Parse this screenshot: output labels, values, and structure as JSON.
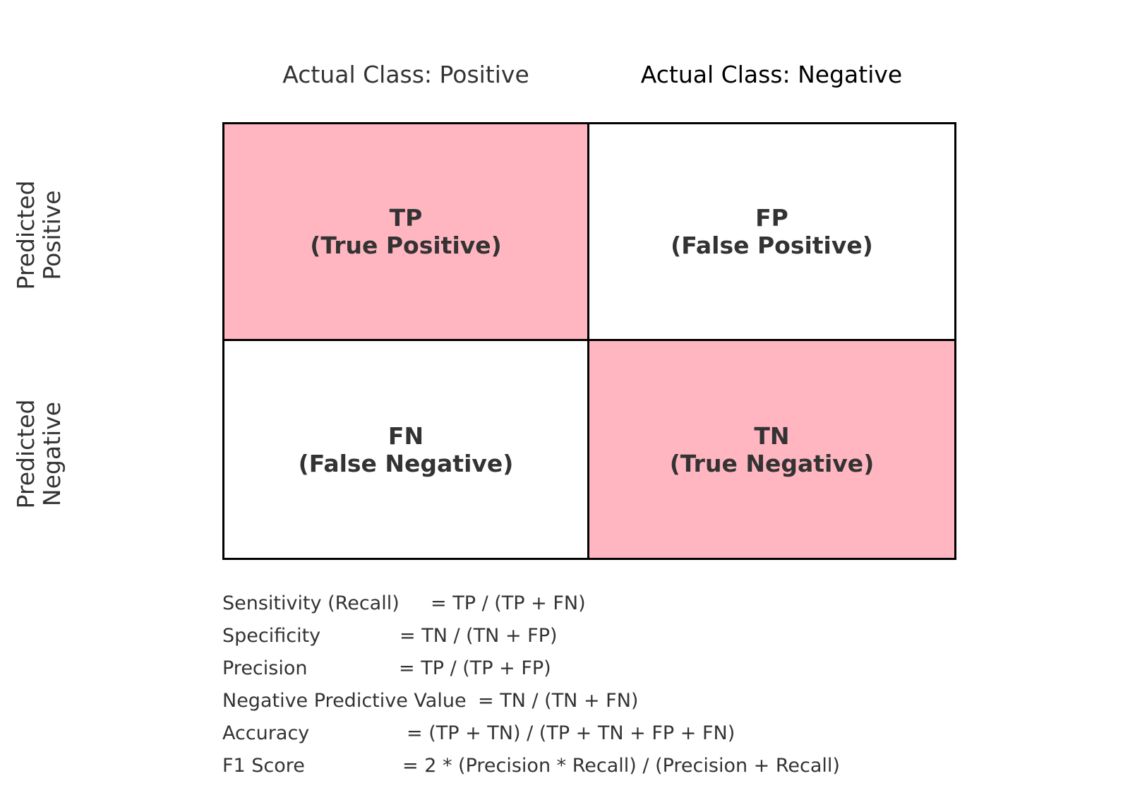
{
  "columns": {
    "positive": "Actual Class: Positive",
    "negative": "Actual Class: Negative"
  },
  "rows": {
    "positive": [
      "Predicted",
      "Positive"
    ],
    "negative": [
      "Predicted",
      "Negative"
    ]
  },
  "cells": {
    "tp": {
      "abbr": "TP",
      "full": "(True Positive)"
    },
    "fp": {
      "abbr": "FP",
      "full": "(False Positive)"
    },
    "fn": {
      "abbr": "FN",
      "full": "(False Negative)"
    },
    "tn": {
      "abbr": "TN",
      "full": "(True Negative)"
    }
  },
  "formulas": [
    {
      "label": "Sensitivity (Recall)",
      "expr": "= TP / (TP + FN)"
    },
    {
      "label": "Specificity",
      "expr": "= TN / (TN + FP)"
    },
    {
      "label": "Precision",
      "expr": "= TP / (TP + FP)"
    },
    {
      "label": "Negative Predictive Value",
      "expr": "= TN / (TN + FN)"
    },
    {
      "label": "Accuracy",
      "expr": "= (TP + TN) / (TP + TN + FP + FN)"
    },
    {
      "label": "F1 Score",
      "expr": "= 2 * (Precision * Recall) / (Precision + Recall)"
    }
  ],
  "colors": {
    "highlight": "#ffb6c1",
    "border": "#000000",
    "text": "#333333"
  }
}
